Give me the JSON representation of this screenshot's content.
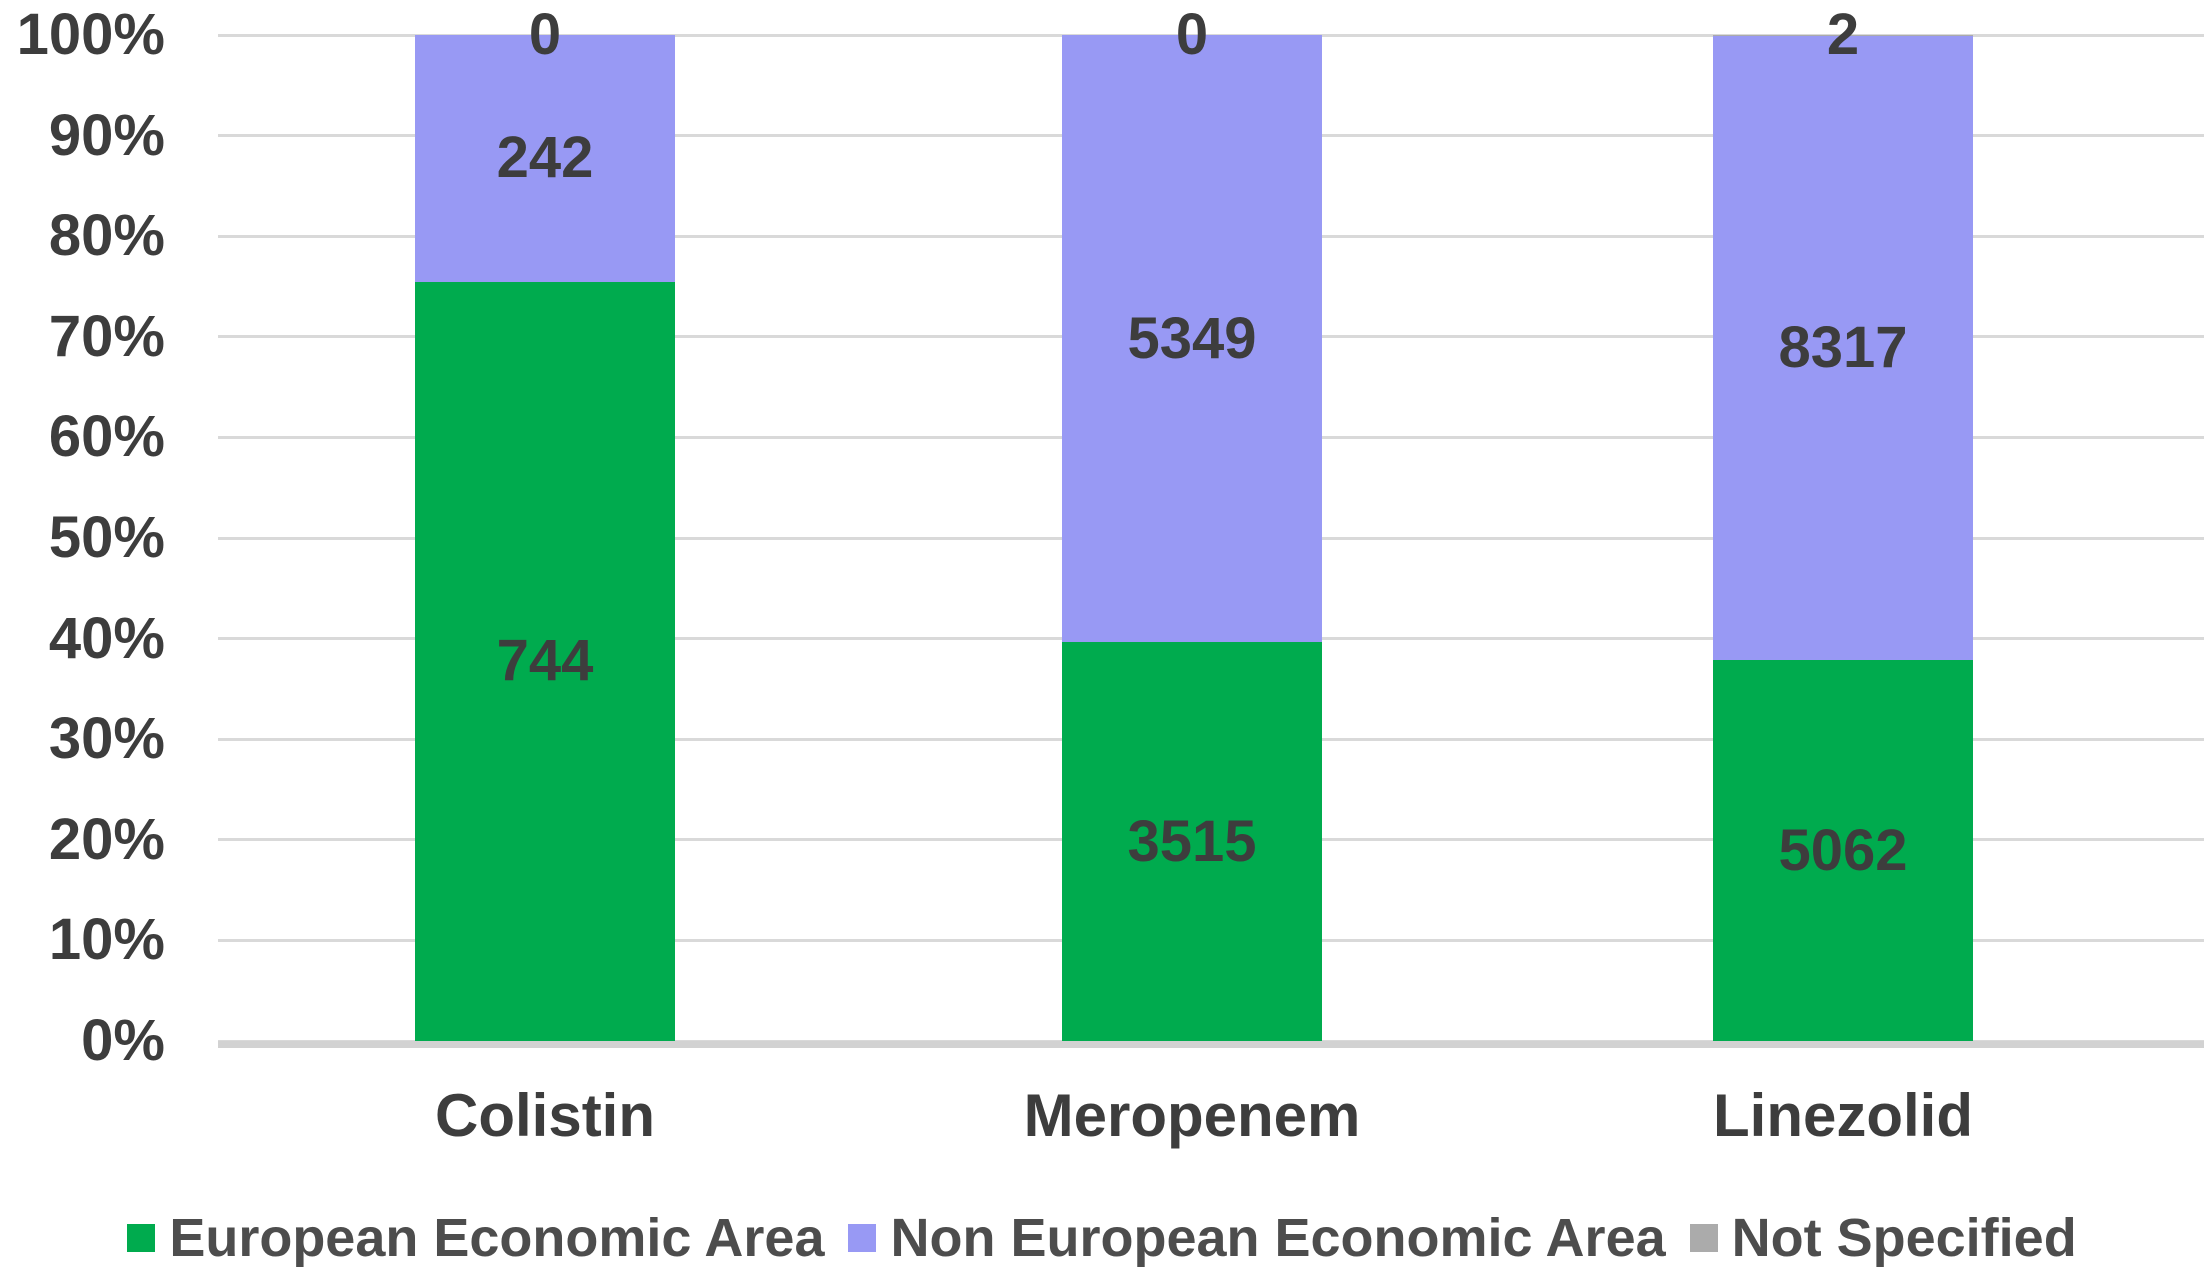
{
  "chart_data": {
    "type": "bar",
    "variant": "100-percent-stacked-column",
    "categories": [
      "Colistin",
      "Meropenem",
      "Linezolid"
    ],
    "series": [
      {
        "name": "European Economic Area",
        "color": "#00AB4E",
        "values": [
          744,
          3515,
          5062
        ]
      },
      {
        "name": "Non European Economic Area",
        "color": "#9899F4",
        "values": [
          242,
          5349,
          8317
        ]
      },
      {
        "name": "Not Specified",
        "color": "#ABABAB",
        "values": [
          0,
          0,
          2
        ]
      }
    ],
    "y_ticks": [
      "0%",
      "10%",
      "20%",
      "30%",
      "40%",
      "50%",
      "60%",
      "70%",
      "80%",
      "90%",
      "100%"
    ],
    "ylim": [
      0,
      100
    ],
    "xlabel": "",
    "ylabel": "",
    "title": "",
    "grid": true,
    "data_labels": true,
    "legend_position": "bottom"
  },
  "colors": {
    "background": "#FFFFFF",
    "gridline": "#D9D9D9",
    "axis_line": "#D2D2D2",
    "tick_text": "#3D3D3D",
    "data_label_text": "#3D3D3D",
    "legend_text": "#4D4D4D"
  }
}
